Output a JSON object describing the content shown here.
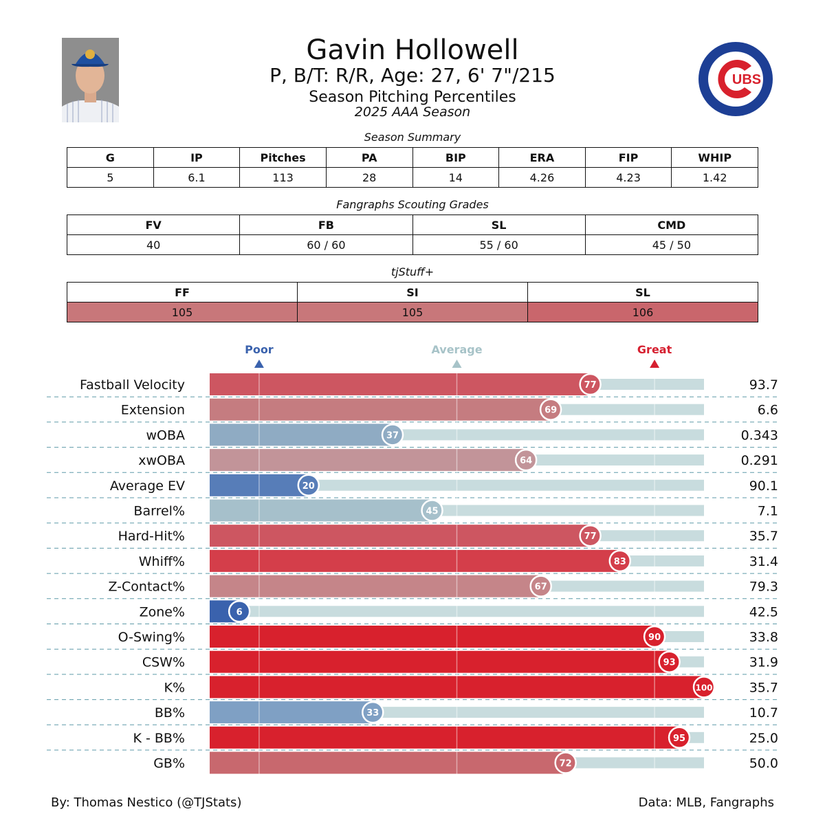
{
  "header": {
    "name": "Gavin Hollowell",
    "bio": "P, B/T: R/R, Age: 27, 6' 7\"/215",
    "subtitle": "Season Pitching Percentiles",
    "season": "2025 AAA Season",
    "logo_text": "UBS"
  },
  "summary": {
    "caption": "Season Summary",
    "headers": [
      "G",
      "IP",
      "Pitches",
      "PA",
      "BIP",
      "ERA",
      "FIP",
      "WHIP"
    ],
    "values": [
      "5",
      "6.1",
      "113",
      "28",
      "14",
      "4.26",
      "4.23",
      "1.42"
    ]
  },
  "scouting": {
    "caption": "Fangraphs Scouting Grades",
    "headers": [
      "FV",
      "FB",
      "SL",
      "CMD"
    ],
    "values": [
      "40",
      "60 / 60",
      "55 / 60",
      "45 / 50"
    ]
  },
  "stuff": {
    "caption": "tjStuff+",
    "headers": [
      "FF",
      "SI",
      "SL"
    ],
    "values": [
      "105",
      "105",
      "106"
    ],
    "colors": [
      "#c8777a",
      "#c8777a",
      "#c9666c"
    ]
  },
  "chart_data": {
    "type": "bar",
    "orientation": "horizontal",
    "title": "Season Pitching Percentiles",
    "xlim": [
      0,
      100
    ],
    "reference_labels": [
      {
        "label": "Poor",
        "value": 10,
        "color": "#3a62ad"
      },
      {
        "label": "Average",
        "value": 50,
        "color": "#a7c3c8"
      },
      {
        "label": "Great",
        "value": 90,
        "color": "#d62030"
      }
    ],
    "categories": [
      "Fastball Velocity",
      "Extension",
      "wOBA",
      "xwOBA",
      "Average EV",
      "Barrel%",
      "Hard-Hit%",
      "Whiff%",
      "Z-Contact%",
      "Zone%",
      "O-Swing%",
      "CSW%",
      "K%",
      "BB%",
      "K - BB%",
      "GB%"
    ],
    "percentiles": [
      77,
      69,
      37,
      64,
      20,
      45,
      77,
      83,
      67,
      6,
      90,
      93,
      100,
      33,
      95,
      72
    ],
    "stat_values": [
      "93.7",
      "6.6",
      "0.343",
      "0.291",
      "90.1",
      "7.1",
      "35.7",
      "31.4",
      "79.3",
      "42.5",
      "33.8",
      "31.9",
      "35.7",
      "10.7",
      "25.0",
      "50.0"
    ],
    "bar_colors": [
      "#cd5661",
      "#c57c80",
      "#8fabc3",
      "#c29499",
      "#577db8",
      "#a6c0cb",
      "#cd5661",
      "#d43e4a",
      "#c58589",
      "#3a62ad",
      "#d8212d",
      "#d8212d",
      "#d8212d",
      "#7fa0c4",
      "#d8212d",
      "#c8686e"
    ],
    "track_color": "#c8dcde"
  },
  "footer": {
    "left": "By: Thomas Nestico (@TJStats)",
    "right": "Data: MLB, Fangraphs"
  }
}
